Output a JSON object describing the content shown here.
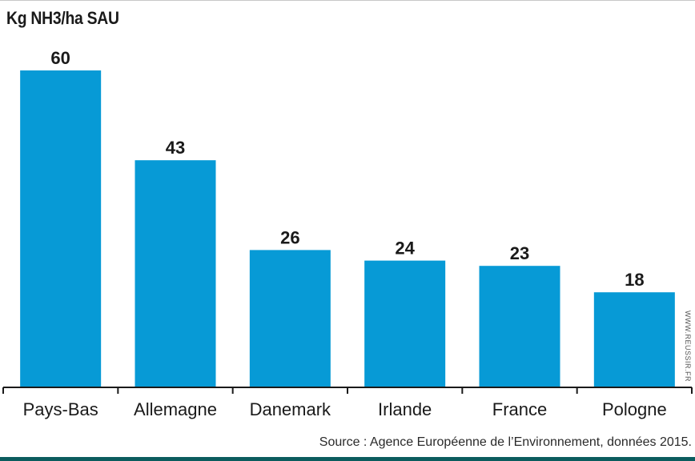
{
  "chart_data": {
    "type": "bar",
    "ylabel": "Kg NH3/ha SAU",
    "categories": [
      "Pays-Bas",
      "Allemagne",
      "Danemark",
      "Irlande",
      "France",
      "Pologne"
    ],
    "values": [
      60,
      43,
      26,
      24,
      23,
      18
    ],
    "value_labels": [
      "60",
      "43",
      "26",
      "24",
      "23",
      "18"
    ],
    "ylim": [
      0,
      60
    ],
    "grid": false,
    "legend": "none",
    "bar_color": "#079ad6"
  },
  "source": "Source : Agence Européenne de l’Environnement, données 2015.",
  "credit": "WWW.REUSSIR.FR"
}
